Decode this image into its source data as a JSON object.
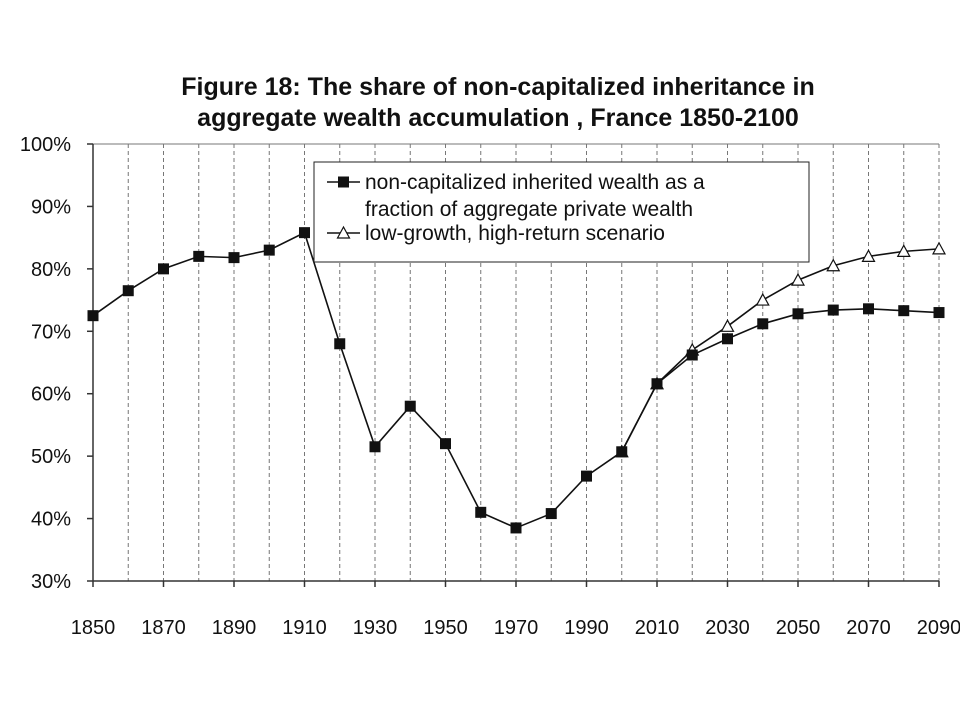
{
  "chart_data": {
    "type": "line",
    "title_lines": [
      "Figure 18: The share of non-capitalized inheritance in",
      "aggregate wealth accumulation , France 1850-2100"
    ],
    "xlabel": "",
    "ylabel": "",
    "x_ticks": [
      "1850",
      "1870",
      "1890",
      "1910",
      "1930",
      "1950",
      "1970",
      "1990",
      "2010",
      "2030",
      "2050",
      "2070",
      "2090"
    ],
    "y_ticks": [
      "30%",
      "40%",
      "50%",
      "60%",
      "70%",
      "80%",
      "90%",
      "100%"
    ],
    "xlim": [
      1850,
      2090
    ],
    "ylim": [
      30,
      100
    ],
    "grid": "vertical dashed",
    "legend_position": "top-right",
    "series": [
      {
        "name": "non-capitalized inherited wealth as a fraction of aggregate private wealth",
        "legend_lines": [
          "non-capitalized inherited wealth as a",
          "fraction of aggregate private wealth"
        ],
        "marker": "filled-square",
        "x": [
          1850,
          1860,
          1870,
          1880,
          1890,
          1900,
          1910,
          1920,
          1930,
          1940,
          1950,
          1960,
          1970,
          1980,
          1990,
          2000,
          2010,
          2020,
          2030,
          2040,
          2050,
          2060,
          2070,
          2080,
          2090
        ],
        "values": [
          72.5,
          76.5,
          80,
          82,
          81.8,
          83,
          85.8,
          68,
          51.5,
          58,
          52,
          41,
          38.5,
          40.8,
          46.8,
          50.7,
          61.6,
          66.2,
          68.8,
          71.2,
          72.8,
          73.4,
          73.6,
          73.3,
          73
        ]
      },
      {
        "name": "low-growth, high-return scenario",
        "legend_lines": [
          "low-growth, high-return scenario"
        ],
        "marker": "open-triangle",
        "x": [
          2000,
          2010,
          2020,
          2030,
          2040,
          2050,
          2060,
          2070,
          2080,
          2090
        ],
        "values": [
          50.7,
          61.6,
          67,
          70.8,
          75,
          78.2,
          80.5,
          82,
          82.8,
          83.2
        ]
      }
    ]
  }
}
